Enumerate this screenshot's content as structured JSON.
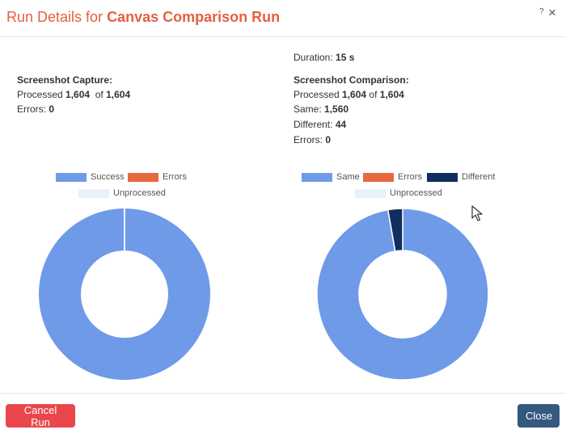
{
  "header": {
    "title_prefix": "Run Details for ",
    "title_name": "Canvas Comparison Run",
    "help_glyph": "?",
    "close_glyph": "×"
  },
  "duration": {
    "label": "Duration:",
    "value": "15 s"
  },
  "capture": {
    "heading": "Screenshot Capture:",
    "processed_label": "Processed",
    "processed": "1,604",
    "of_label": "of",
    "total": "1,604",
    "errors_label": "Errors:",
    "errors": "0"
  },
  "comparison": {
    "heading": "Screenshot Comparison:",
    "processed_label": "Processed",
    "processed": "1,604",
    "of_label": "of",
    "total": "1,604",
    "same_label": "Same:",
    "same": "1,560",
    "different_label": "Different:",
    "different": "44",
    "errors_label": "Errors:",
    "errors": "0"
  },
  "chart_data": [
    {
      "type": "pie",
      "donut": true,
      "legend": [
        {
          "name": "Success",
          "color": "#6f9ae8"
        },
        {
          "name": "Errors",
          "color": "#e8683f"
        },
        {
          "name": "Unprocessed",
          "color": "#eaf0fb"
        }
      ],
      "slices": [
        {
          "name": "Success",
          "value": 1604,
          "color": "#6f9ae8"
        },
        {
          "name": "Errors",
          "value": 0,
          "color": "#e8683f"
        },
        {
          "name": "Unprocessed",
          "value": 0,
          "color": "#eaf0fb"
        }
      ]
    },
    {
      "type": "pie",
      "donut": true,
      "legend": [
        {
          "name": "Same",
          "color": "#6f9ae8"
        },
        {
          "name": "Errors",
          "color": "#e8683f"
        },
        {
          "name": "Different",
          "color": "#0f2d5e"
        },
        {
          "name": "Unprocessed",
          "color": "#eaf0fb"
        }
      ],
      "slices": [
        {
          "name": "Same",
          "value": 1560,
          "color": "#6f9ae8"
        },
        {
          "name": "Errors",
          "value": 0,
          "color": "#e8683f"
        },
        {
          "name": "Different",
          "value": 44,
          "color": "#0f2d5e"
        },
        {
          "name": "Unprocessed",
          "value": 0,
          "color": "#eaf0fb"
        }
      ]
    }
  ],
  "footer": {
    "cancel_label": "Cancel Run",
    "close_label": "Close"
  }
}
